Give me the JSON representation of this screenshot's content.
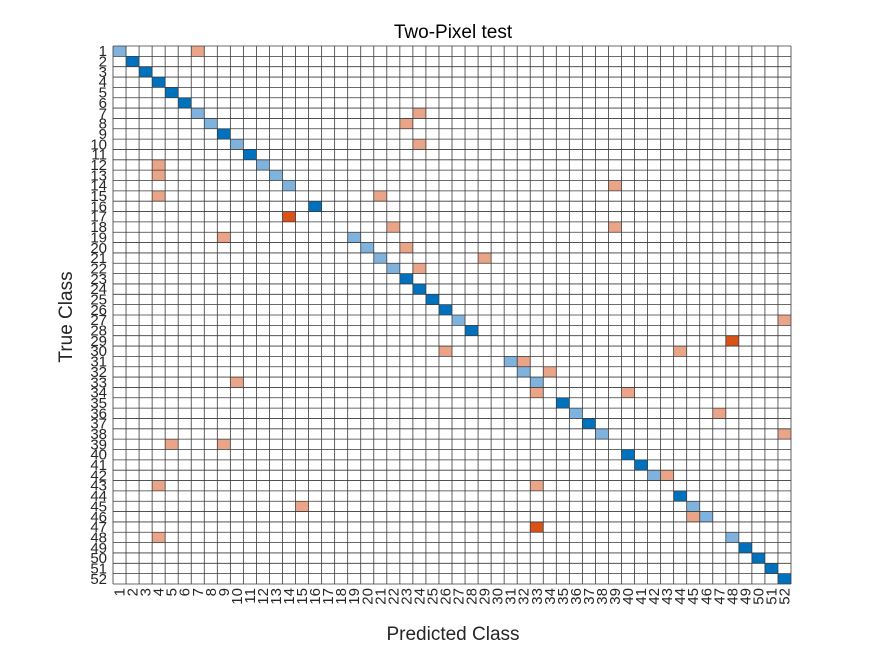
{
  "chart_data": {
    "type": "heatmap",
    "title": "Two-Pixel test",
    "xlabel": "Predicted Class",
    "ylabel": "True Class",
    "class_labels": [
      "1",
      "2",
      "3",
      "4",
      "5",
      "6",
      "7",
      "8",
      "9",
      "10",
      "11",
      "12",
      "13",
      "14",
      "15",
      "16",
      "17",
      "18",
      "19",
      "20",
      "21",
      "22",
      "23",
      "24",
      "25",
      "26",
      "27",
      "28",
      "29",
      "30",
      "31",
      "32",
      "33",
      "34",
      "35",
      "36",
      "37",
      "38",
      "39",
      "40",
      "41",
      "42",
      "43",
      "44",
      "45",
      "46",
      "47",
      "48",
      "49",
      "50",
      "51",
      "52"
    ],
    "grid": true,
    "colors": {
      "correct_dark": "#0072bd",
      "correct_light": "#7fb2dc",
      "error_light": "#eaa487",
      "error_dark": "#d95319",
      "grid_line": "#3a3a3a",
      "background": "#ffffff"
    },
    "correct_cells": [
      {
        "class": 1,
        "shade": "light"
      },
      {
        "class": 2,
        "shade": "dark"
      },
      {
        "class": 3,
        "shade": "dark"
      },
      {
        "class": 4,
        "shade": "dark"
      },
      {
        "class": 5,
        "shade": "dark"
      },
      {
        "class": 6,
        "shade": "dark"
      },
      {
        "class": 7,
        "shade": "light"
      },
      {
        "class": 8,
        "shade": "light"
      },
      {
        "class": 9,
        "shade": "dark"
      },
      {
        "class": 10,
        "shade": "light"
      },
      {
        "class": 11,
        "shade": "dark"
      },
      {
        "class": 12,
        "shade": "light"
      },
      {
        "class": 13,
        "shade": "light"
      },
      {
        "class": 14,
        "shade": "light"
      },
      {
        "class": 16,
        "shade": "dark"
      },
      {
        "class": 19,
        "shade": "light"
      },
      {
        "class": 20,
        "shade": "light"
      },
      {
        "class": 21,
        "shade": "light"
      },
      {
        "class": 22,
        "shade": "light"
      },
      {
        "class": 23,
        "shade": "dark"
      },
      {
        "class": 24,
        "shade": "dark"
      },
      {
        "class": 25,
        "shade": "dark"
      },
      {
        "class": 26,
        "shade": "dark"
      },
      {
        "class": 27,
        "shade": "light"
      },
      {
        "class": 28,
        "shade": "dark"
      },
      {
        "class": 31,
        "shade": "light"
      },
      {
        "class": 32,
        "shade": "light"
      },
      {
        "class": 33,
        "shade": "light"
      },
      {
        "class": 35,
        "shade": "dark"
      },
      {
        "class": 36,
        "shade": "light"
      },
      {
        "class": 37,
        "shade": "dark"
      },
      {
        "class": 38,
        "shade": "light"
      },
      {
        "class": 40,
        "shade": "dark"
      },
      {
        "class": 41,
        "shade": "dark"
      },
      {
        "class": 42,
        "shade": "light"
      },
      {
        "class": 44,
        "shade": "dark"
      },
      {
        "class": 45,
        "shade": "light"
      },
      {
        "class": 46,
        "shade": "light"
      },
      {
        "class": 48,
        "shade": "light"
      },
      {
        "class": 49,
        "shade": "dark"
      },
      {
        "class": 50,
        "shade": "dark"
      },
      {
        "class": 51,
        "shade": "dark"
      },
      {
        "class": 52,
        "shade": "dark"
      }
    ],
    "error_cells": [
      {
        "true": 1,
        "pred": 7,
        "shade": "light"
      },
      {
        "true": 7,
        "pred": 24,
        "shade": "light"
      },
      {
        "true": 8,
        "pred": 23,
        "shade": "light"
      },
      {
        "true": 10,
        "pred": 24,
        "shade": "light"
      },
      {
        "true": 12,
        "pred": 4,
        "shade": "light"
      },
      {
        "true": 13,
        "pred": 4,
        "shade": "light"
      },
      {
        "true": 14,
        "pred": 39,
        "shade": "light"
      },
      {
        "true": 15,
        "pred": 4,
        "shade": "light"
      },
      {
        "true": 15,
        "pred": 21,
        "shade": "light"
      },
      {
        "true": 17,
        "pred": 14,
        "shade": "dark"
      },
      {
        "true": 18,
        "pred": 22,
        "shade": "light"
      },
      {
        "true": 18,
        "pred": 39,
        "shade": "light"
      },
      {
        "true": 19,
        "pred": 9,
        "shade": "light"
      },
      {
        "true": 20,
        "pred": 23,
        "shade": "light"
      },
      {
        "true": 21,
        "pred": 29,
        "shade": "light"
      },
      {
        "true": 22,
        "pred": 24,
        "shade": "light"
      },
      {
        "true": 27,
        "pred": 52,
        "shade": "light"
      },
      {
        "true": 29,
        "pred": 48,
        "shade": "dark"
      },
      {
        "true": 30,
        "pred": 26,
        "shade": "light"
      },
      {
        "true": 30,
        "pred": 44,
        "shade": "light"
      },
      {
        "true": 31,
        "pred": 32,
        "shade": "light"
      },
      {
        "true": 32,
        "pred": 34,
        "shade": "light"
      },
      {
        "true": 33,
        "pred": 10,
        "shade": "light"
      },
      {
        "true": 34,
        "pred": 33,
        "shade": "light"
      },
      {
        "true": 34,
        "pred": 40,
        "shade": "light"
      },
      {
        "true": 36,
        "pred": 47,
        "shade": "light"
      },
      {
        "true": 38,
        "pred": 52,
        "shade": "light"
      },
      {
        "true": 39,
        "pred": 5,
        "shade": "light"
      },
      {
        "true": 39,
        "pred": 9,
        "shade": "light"
      },
      {
        "true": 42,
        "pred": 43,
        "shade": "light"
      },
      {
        "true": 43,
        "pred": 4,
        "shade": "light"
      },
      {
        "true": 43,
        "pred": 33,
        "shade": "light"
      },
      {
        "true": 45,
        "pred": 15,
        "shade": "light"
      },
      {
        "true": 46,
        "pred": 45,
        "shade": "light"
      },
      {
        "true": 47,
        "pred": 33,
        "shade": "dark"
      },
      {
        "true": 48,
        "pred": 4,
        "shade": "light"
      }
    ]
  }
}
